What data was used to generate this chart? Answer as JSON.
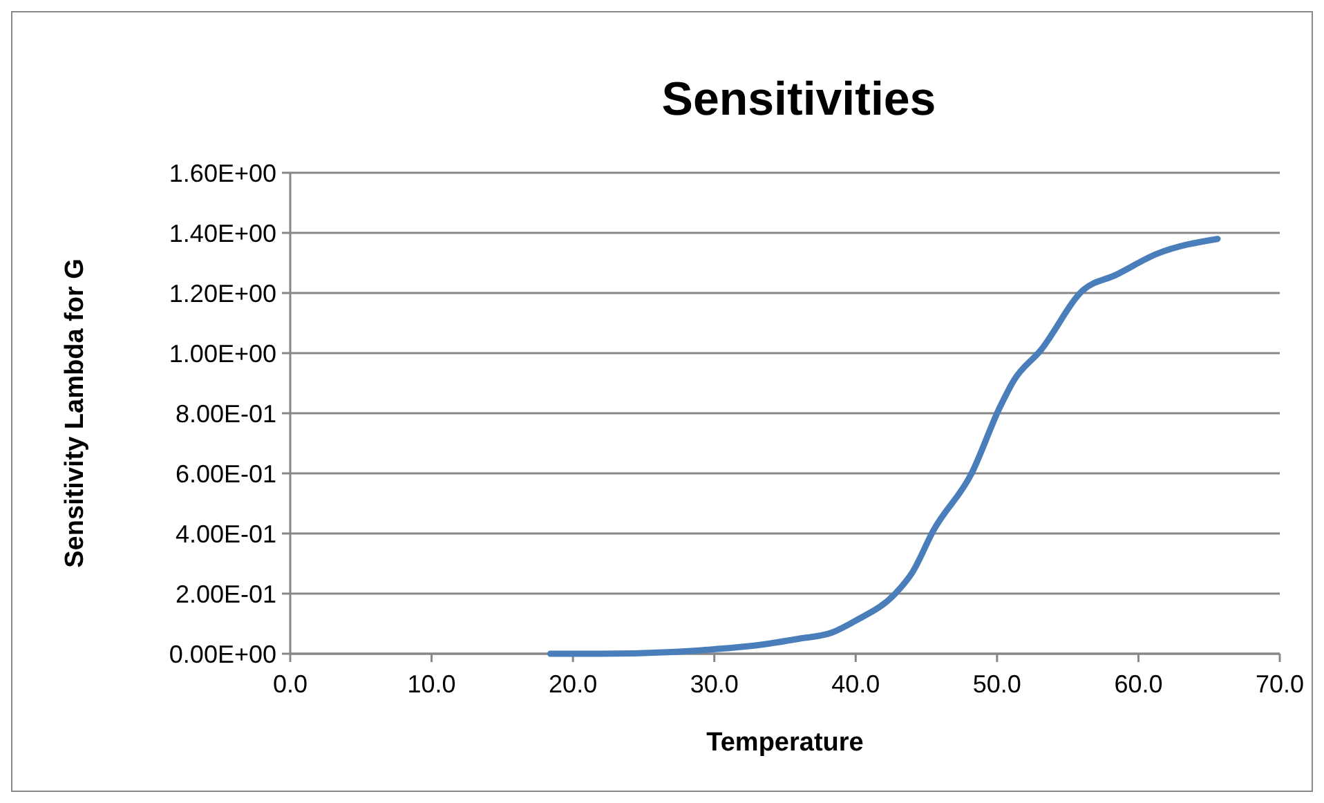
{
  "chart_data": {
    "type": "line",
    "title": "Sensitivities",
    "xlabel": "Temperature",
    "ylabel": "Sensitivity Lambda for G",
    "series": [
      {
        "color": "#4a7ebb",
        "x": [
          18.4,
          22,
          26.7,
          30,
          33.3,
          36,
          38.3,
          40,
          42.8,
          44,
          45.5,
          48.2,
          50.2,
          51.2,
          53.1,
          56.1,
          58.4,
          61.3,
          65.6
        ],
        "values": [
          0,
          0,
          0.005,
          0.015,
          0.03,
          0.05,
          0.07,
          0.11,
          0.2,
          0.27,
          0.41,
          0.6,
          0.82,
          0.91,
          1.01,
          1.21,
          1.26,
          1.33,
          1.38
        ]
      }
    ],
    "xlim": [
      0,
      70
    ],
    "xticks": [
      {
        "value": 0,
        "label": "0.0"
      },
      {
        "value": 10,
        "label": "10.0"
      },
      {
        "value": 20,
        "label": "20.0"
      },
      {
        "value": 30,
        "label": "30.0"
      },
      {
        "value": 40,
        "label": "40.0"
      },
      {
        "value": 50,
        "label": "50.0"
      },
      {
        "value": 60,
        "label": "60.0"
      },
      {
        "value": 70,
        "label": "70.0"
      }
    ],
    "ylim": [
      0,
      1.6
    ],
    "yticks": [
      {
        "value": 0,
        "label": "0.00E+00"
      },
      {
        "value": 0.2,
        "label": "2.00E-01"
      },
      {
        "value": 0.4,
        "label": "4.00E-01"
      },
      {
        "value": 0.6,
        "label": "6.00E-01"
      },
      {
        "value": 0.8,
        "label": "8.00E-01"
      },
      {
        "value": 1,
        "label": "1.00E+00"
      },
      {
        "value": 1.2,
        "label": "1.20E+00"
      },
      {
        "value": 1.4,
        "label": "1.40E+00"
      },
      {
        "value": 1.6,
        "label": "1.60E+00"
      }
    ],
    "grid": "y",
    "marker": "none",
    "line_style": "solid"
  }
}
